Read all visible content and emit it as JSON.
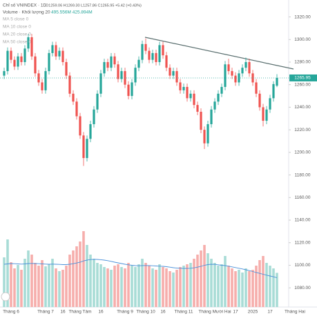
{
  "chart_data": {
    "type": "candlestick",
    "legend": {
      "symbol": "Chỉ số VNINDEX · 1D",
      "ohlc": "O1259.06 H1269.30 L1257.86 C1265.95 +5.42 (+0.43%)",
      "volume": "Volume · Khối lượng 20",
      "volume_values": "495.556M 425.894M",
      "ma": [
        "MA 5 close 0",
        "MA 10 close 0",
        "MA 20 close 0",
        "MA 50 close 0"
      ]
    },
    "categories": [
      null,
      null,
      "Tháng 6",
      null,
      null,
      null,
      null,
      null,
      null,
      null,
      null,
      null,
      "Tháng 7",
      null,
      null,
      null,
      null,
      "16",
      null,
      null,
      null,
      null,
      "Tháng Tám",
      null,
      null,
      null,
      null,
      null,
      "16",
      null,
      null,
      null,
      null,
      null,
      null,
      "Tháng 9",
      null,
      null,
      null,
      null,
      null,
      "Tháng 10",
      null,
      null,
      null,
      null,
      "16",
      null,
      null,
      null,
      null,
      null,
      "Tháng 11",
      null,
      null,
      null,
      null,
      null,
      null,
      null,
      null,
      "Tháng Mười Hai",
      null,
      null,
      null,
      null,
      null,
      "17",
      null,
      null,
      null,
      null,
      "2025",
      null,
      null,
      null,
      null,
      "17",
      null,
      null
    ],
    "future_label": "Tháng Hai",
    "open": [
      1268,
      1272,
      1290,
      1282,
      1276,
      1285,
      1280,
      1292,
      1302,
      1285,
      1270,
      1262,
      1255,
      1272,
      1288,
      1295,
      1285,
      1290,
      1280,
      1268,
      1252,
      1245,
      1232,
      1215,
      1195,
      1212,
      1225,
      1238,
      1252,
      1270,
      1280,
      1275,
      1285,
      1278,
      1265,
      1272,
      1260,
      1250,
      1262,
      1275,
      1282,
      1296,
      1290,
      1282,
      1288,
      1280,
      1295,
      1286,
      1275,
      1268,
      1272,
      1262,
      1255,
      1258,
      1248,
      1252,
      1242,
      1236,
      1220,
      1208,
      1225,
      1238,
      1245,
      1252,
      1258,
      1278,
      1272,
      1268,
      1262,
      1270,
      1275,
      1280,
      1270,
      1262,
      1252,
      1240,
      1228,
      1238,
      1248,
      1259.06
    ],
    "high": [
      1275,
      1293,
      1293,
      1285,
      1288,
      1288,
      1295,
      1305,
      1305,
      1288,
      1273,
      1265,
      1275,
      1291,
      1298,
      1298,
      1293,
      1293,
      1283,
      1271,
      1255,
      1248,
      1235,
      1218,
      1215,
      1228,
      1241,
      1255,
      1273,
      1283,
      1283,
      1288,
      1288,
      1281,
      1275,
      1275,
      1263,
      1265,
      1278,
      1285,
      1299,
      1301,
      1293,
      1291,
      1291,
      1298,
      1298,
      1289,
      1278,
      1275,
      1275,
      1265,
      1261,
      1261,
      1255,
      1255,
      1245,
      1239,
      1223,
      1228,
      1241,
      1248,
      1255,
      1261,
      1281,
      1283,
      1275,
      1271,
      1273,
      1278,
      1284,
      1283,
      1273,
      1265,
      1255,
      1243,
      1241,
      1251,
      1263,
      1269.3
    ],
    "low": [
      1265,
      1269,
      1279,
      1273,
      1273,
      1277,
      1277,
      1289,
      1282,
      1267,
      1259,
      1252,
      1252,
      1269,
      1285,
      1282,
      1282,
      1277,
      1265,
      1249,
      1242,
      1229,
      1212,
      1188,
      1192,
      1209,
      1222,
      1235,
      1249,
      1267,
      1272,
      1272,
      1275,
      1262,
      1262,
      1257,
      1247,
      1247,
      1259,
      1272,
      1279,
      1287,
      1279,
      1279,
      1277,
      1277,
      1283,
      1272,
      1265,
      1265,
      1259,
      1252,
      1252,
      1245,
      1245,
      1239,
      1233,
      1217,
      1203,
      1205,
      1222,
      1235,
      1242,
      1249,
      1255,
      1269,
      1265,
      1259,
      1259,
      1267,
      1272,
      1267,
      1259,
      1249,
      1237,
      1223,
      1225,
      1235,
      1245,
      1257.86
    ],
    "close": [
      1272,
      1290,
      1282,
      1276,
      1285,
      1280,
      1292,
      1302,
      1285,
      1270,
      1262,
      1255,
      1272,
      1288,
      1295,
      1285,
      1290,
      1280,
      1268,
      1252,
      1245,
      1232,
      1215,
      1195,
      1212,
      1225,
      1238,
      1252,
      1270,
      1280,
      1275,
      1285,
      1278,
      1265,
      1272,
      1260,
      1250,
      1262,
      1275,
      1282,
      1296,
      1290,
      1282,
      1288,
      1280,
      1295,
      1286,
      1275,
      1268,
      1272,
      1262,
      1255,
      1258,
      1248,
      1252,
      1242,
      1236,
      1220,
      1208,
      1225,
      1238,
      1245,
      1252,
      1258,
      1278,
      1272,
      1268,
      1262,
      1270,
      1275,
      1280,
      1270,
      1262,
      1252,
      1240,
      1228,
      1238,
      1248,
      1260.53,
      1265.95
    ],
    "volume": [
      720,
      980,
      650,
      560,
      610,
      540,
      700,
      820,
      760,
      640,
      600,
      680,
      590,
      620,
      700,
      560,
      520,
      540,
      600,
      760,
      820,
      880,
      950,
      1100,
      900,
      760,
      700,
      640,
      620,
      580,
      560,
      540,
      600,
      620,
      580,
      560,
      640,
      600,
      580,
      620,
      700,
      640,
      600,
      560,
      540,
      620,
      580,
      560,
      520,
      500,
      540,
      580,
      600,
      620,
      640,
      700,
      760,
      820,
      900,
      780,
      700,
      640,
      600,
      620,
      740,
      600,
      560,
      520,
      540,
      500,
      560,
      520,
      540,
      600,
      680,
      740,
      640,
      600,
      560,
      495.556
    ],
    "volume_ma": [
      620,
      625,
      630,
      628,
      625,
      622,
      625,
      630,
      632,
      630,
      628,
      625,
      622,
      620,
      622,
      620,
      618,
      615,
      615,
      620,
      628,
      638,
      650,
      668,
      680,
      688,
      692,
      690,
      686,
      680,
      672,
      662,
      650,
      640,
      630,
      620,
      612,
      605,
      600,
      598,
      600,
      602,
      600,
      598,
      595,
      592,
      590,
      585,
      578,
      570,
      565,
      562,
      560,
      560,
      562,
      568,
      578,
      590,
      605,
      615,
      620,
      618,
      612,
      605,
      600,
      592,
      582,
      572,
      562,
      552,
      540,
      528,
      515,
      500,
      488,
      475,
      462,
      450,
      438,
      425.894
    ],
    "up_color": "#26a69a",
    "down_color": "#ef5350",
    "volume_up_color": "#a8dcd6",
    "volume_down_color": "#f6aeac",
    "volume_ma_color": "#4a90d9",
    "ylim": [
      1063,
      1335
    ],
    "yticks": [
      {
        "value": 1080,
        "label": "1080.00"
      },
      {
        "value": 1100,
        "label": "1100.00"
      },
      {
        "value": 1120,
        "label": "1120.00"
      },
      {
        "value": 1140,
        "label": "1140.00"
      },
      {
        "value": 1160,
        "label": "1160.00"
      },
      {
        "value": 1180,
        "label": "1180.00"
      },
      {
        "value": 1200,
        "label": "1200.00"
      },
      {
        "value": 1220,
        "label": "1220.00"
      },
      {
        "value": 1240,
        "label": "1240.00"
      },
      {
        "value": 1260,
        "label": "1260.00"
      },
      {
        "value": 1280,
        "label": "1280.00"
      },
      {
        "value": 1300,
        "label": "1300.00"
      },
      {
        "value": 1320,
        "label": "1320.00"
      }
    ],
    "grid": false
  }
}
